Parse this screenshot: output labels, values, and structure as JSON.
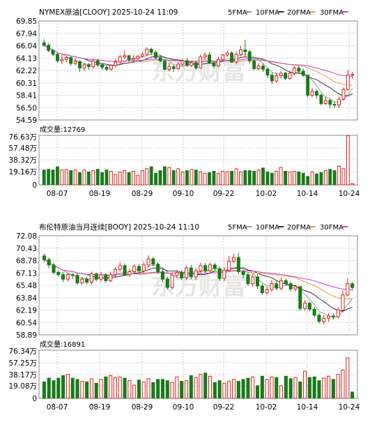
{
  "chart_data": [
    {
      "type": "candlestick",
      "title": "NYMEX原油[CLOOY] 2025-10-24 11:09",
      "legend": [
        {
          "label": "5FMA",
          "color": "#9a9a9a"
        },
        {
          "label": "10FMA",
          "color": "#333333"
        },
        {
          "label": "20FMA",
          "color": "#e0a040"
        },
        {
          "label": "30FMA",
          "color": "#d040d0"
        }
      ],
      "price_ticks": [
        "69.85",
        "67.94",
        "66.04",
        "64.13",
        "62.22",
        "60.31",
        "58.41",
        "56.50",
        "54.59"
      ],
      "price_range": [
        54.59,
        69.85
      ],
      "volume_label": "成交量:12769",
      "volume_ticks": [
        "76.63万",
        "57.48万",
        "38.32万",
        "19.16万",
        "0"
      ],
      "volume_range": [
        0,
        76.63
      ],
      "x_labels": [
        "08-07",
        "08-19",
        "08-29",
        "09-10",
        "09-22",
        "10-02",
        "10-14",
        "10-24"
      ],
      "candles": [
        [
          66.5,
          66.1,
          67.0,
          65.9
        ],
        [
          66.1,
          65.3,
          66.4,
          65.0
        ],
        [
          65.3,
          64.7,
          65.6,
          64.4
        ],
        [
          64.7,
          63.7,
          65.0,
          63.4
        ],
        [
          63.7,
          63.9,
          64.6,
          63.2
        ],
        [
          63.9,
          64.2,
          64.5,
          63.5
        ],
        [
          64.2,
          63.3,
          64.4,
          62.9
        ],
        [
          63.3,
          63.6,
          64.1,
          63.0
        ],
        [
          63.6,
          62.6,
          63.8,
          62.0
        ],
        [
          62.6,
          63.1,
          63.4,
          62.2
        ],
        [
          63.1,
          62.8,
          63.4,
          62.3
        ],
        [
          62.8,
          63.7,
          64.0,
          62.5
        ],
        [
          63.7,
          63.1,
          64.0,
          62.8
        ],
        [
          63.1,
          62.7,
          63.3,
          62.3
        ],
        [
          62.7,
          62.4,
          63.0,
          62.1
        ],
        [
          62.4,
          63.0,
          63.2,
          62.2
        ],
        [
          63.0,
          63.5,
          64.0,
          62.7
        ],
        [
          63.5,
          64.3,
          64.6,
          63.1
        ],
        [
          64.3,
          64.5,
          65.3,
          64.0
        ],
        [
          64.5,
          63.9,
          64.6,
          63.5
        ],
        [
          63.9,
          64.1,
          64.6,
          63.6
        ],
        [
          64.1,
          64.4,
          64.6,
          63.8
        ],
        [
          64.4,
          64.7,
          65.1,
          64.3
        ],
        [
          64.7,
          65.5,
          65.8,
          64.5
        ],
        [
          65.5,
          65.0,
          65.7,
          64.6
        ],
        [
          65.0,
          64.2,
          65.3,
          63.9
        ],
        [
          64.2,
          63.7,
          64.5,
          63.4
        ],
        [
          63.7,
          62.4,
          63.9,
          62.2
        ],
        [
          62.4,
          62.8,
          63.4,
          62.1
        ],
        [
          62.8,
          62.5,
          63.1,
          62.0
        ],
        [
          62.5,
          63.2,
          63.5,
          62.3
        ],
        [
          63.2,
          63.7,
          64.0,
          62.8
        ],
        [
          63.7,
          63.0,
          64.1,
          62.7
        ],
        [
          63.0,
          63.4,
          63.7,
          62.7
        ],
        [
          63.4,
          62.6,
          63.7,
          62.3
        ],
        [
          62.6,
          64.3,
          64.7,
          62.5
        ],
        [
          64.3,
          64.6,
          65.0,
          63.9
        ],
        [
          64.6,
          63.4,
          65.0,
          63.2
        ],
        [
          63.4,
          62.9,
          63.7,
          62.5
        ],
        [
          62.9,
          63.9,
          64.3,
          62.7
        ],
        [
          63.9,
          64.6,
          64.8,
          63.5
        ],
        [
          64.6,
          64.9,
          65.2,
          64.3
        ],
        [
          64.9,
          63.5,
          65.2,
          63.4
        ],
        [
          63.5,
          64.7,
          65.1,
          63.2
        ],
        [
          64.7,
          65.4,
          66.0,
          64.4
        ],
        [
          65.4,
          65.1,
          66.9,
          64.3
        ],
        [
          65.1,
          63.7,
          65.4,
          63.3
        ],
        [
          63.7,
          62.5,
          63.9,
          62.2
        ],
        [
          62.5,
          62.9,
          63.3,
          62.2
        ],
        [
          62.9,
          62.4,
          63.3,
          62.0
        ],
        [
          62.4,
          61.5,
          62.7,
          61.1
        ],
        [
          61.5,
          60.6,
          61.9,
          60.1
        ],
        [
          60.6,
          61.4,
          61.8,
          60.3
        ],
        [
          61.4,
          61.8,
          62.1,
          61.0
        ],
        [
          61.8,
          61.0,
          62.0,
          60.7
        ],
        [
          61.0,
          61.8,
          62.2,
          60.8
        ],
        [
          61.8,
          62.6,
          62.9,
          61.5
        ],
        [
          62.6,
          62.1,
          62.9,
          61.7
        ],
        [
          62.1,
          61.5,
          62.5,
          61.2
        ],
        [
          61.5,
          58.4,
          61.6,
          58.1
        ],
        [
          58.4,
          59.0,
          59.5,
          58.1
        ],
        [
          59.0,
          58.4,
          59.3,
          57.9
        ],
        [
          58.4,
          57.1,
          58.7,
          56.8
        ],
        [
          57.1,
          57.6,
          58.2,
          56.9
        ],
        [
          57.6,
          57.0,
          57.9,
          56.4
        ],
        [
          57.0,
          56.9,
          57.4,
          56.4
        ],
        [
          56.9,
          57.8,
          58.2,
          56.4
        ],
        [
          57.8,
          59.3,
          59.6,
          57.6
        ],
        [
          59.3,
          61.5,
          62.3,
          59.1
        ],
        [
          61.5,
          61.6,
          62.0,
          60.9
        ]
      ],
      "volumes": [
        23,
        24,
        23,
        28,
        23,
        24,
        22,
        23,
        19,
        23,
        20,
        22,
        24,
        19,
        23,
        21,
        16,
        20,
        22,
        19,
        21,
        15,
        22,
        25,
        28,
        18,
        22,
        28,
        27,
        22,
        25,
        20,
        22,
        24,
        23,
        20,
        18,
        19,
        21,
        18,
        21,
        20,
        21,
        25,
        20,
        22,
        22,
        21,
        23,
        26,
        20,
        18,
        21,
        27,
        21,
        20,
        21,
        20,
        18,
        13,
        20,
        17,
        19,
        22,
        24,
        22,
        29,
        25,
        76,
        2
      ]
    },
    {
      "type": "candlestick",
      "title": "布伦特原油当月连续[BOOY] 2025-10-24 11:10",
      "legend": [
        {
          "label": "5FMA",
          "color": "#9a9a9a"
        },
        {
          "label": "10FMA",
          "color": "#333333"
        },
        {
          "label": "20FMA",
          "color": "#e0a040"
        },
        {
          "label": "30FMA",
          "color": "#d040d0"
        }
      ],
      "price_ticks": [
        "72.08",
        "70.43",
        "68.78",
        "67.13",
        "65.48",
        "63.84",
        "62.19",
        "60.54",
        "58.89"
      ],
      "price_range": [
        58.89,
        72.08
      ],
      "volume_label": "成交量:16891",
      "volume_ticks": [
        "76.34万",
        "57.25万",
        "38.17万",
        "19.08万",
        "0"
      ],
      "volume_range": [
        0,
        76.34
      ],
      "x_labels": [
        "08-07",
        "08-19",
        "08-29",
        "09-10",
        "09-22",
        "10-02",
        "10-14",
        "10-24"
      ],
      "candles": [
        [
          69.4,
          68.9,
          69.7,
          68.6
        ],
        [
          68.9,
          68.2,
          69.2,
          67.8
        ],
        [
          68.2,
          67.2,
          68.5,
          66.9
        ],
        [
          67.2,
          66.9,
          67.5,
          66.6
        ],
        [
          66.9,
          66.3,
          67.3,
          65.9
        ],
        [
          66.3,
          66.9,
          67.2,
          66.0
        ],
        [
          66.9,
          66.8,
          67.1,
          66.3
        ],
        [
          66.8,
          65.8,
          67.1,
          65.5
        ],
        [
          65.8,
          66.3,
          66.6,
          65.6
        ],
        [
          66.3,
          65.9,
          66.6,
          65.6
        ],
        [
          65.9,
          67.0,
          67.3,
          65.6
        ],
        [
          67.0,
          66.3,
          67.2,
          66.0
        ],
        [
          66.3,
          66.9,
          67.3,
          65.9
        ],
        [
          66.9,
          66.1,
          67.1,
          65.8
        ],
        [
          66.1,
          66.9,
          67.3,
          65.9
        ],
        [
          66.9,
          67.6,
          67.9,
          66.6
        ],
        [
          67.6,
          68.1,
          68.6,
          67.3
        ],
        [
          68.1,
          66.9,
          68.4,
          66.7
        ],
        [
          66.9,
          67.3,
          67.7,
          66.6
        ],
        [
          67.3,
          68.0,
          68.3,
          67.0
        ],
        [
          68.0,
          67.4,
          68.3,
          67.1
        ],
        [
          67.4,
          68.2,
          68.6,
          67.1
        ],
        [
          68.2,
          69.0,
          69.5,
          67.9
        ],
        [
          69.0,
          68.3,
          69.3,
          68.0
        ],
        [
          68.3,
          67.3,
          68.6,
          67.0
        ],
        [
          67.3,
          66.3,
          67.6,
          65.9
        ],
        [
          66.3,
          65.2,
          66.6,
          64.9
        ],
        [
          65.2,
          66.8,
          67.2,
          64.9
        ],
        [
          66.8,
          67.2,
          67.5,
          66.5
        ],
        [
          67.2,
          66.5,
          67.5,
          66.2
        ],
        [
          66.5,
          67.8,
          68.1,
          66.2
        ],
        [
          67.8,
          66.6,
          68.2,
          66.3
        ],
        [
          66.6,
          67.4,
          67.8,
          66.2
        ],
        [
          67.4,
          68.1,
          68.5,
          67.1
        ],
        [
          68.1,
          67.4,
          68.5,
          67.1
        ],
        [
          67.4,
          68.2,
          68.5,
          67.0
        ],
        [
          68.2,
          67.7,
          68.5,
          67.3
        ],
        [
          67.7,
          66.4,
          68.0,
          66.1
        ],
        [
          66.4,
          67.5,
          67.9,
          66.1
        ],
        [
          67.5,
          68.7,
          69.4,
          67.3
        ],
        [
          68.7,
          69.2,
          69.7,
          68.5
        ],
        [
          69.2,
          67.3,
          69.8,
          66.9
        ],
        [
          67.3,
          66.9,
          67.6,
          66.4
        ],
        [
          66.9,
          65.7,
          67.2,
          65.4
        ],
        [
          65.7,
          66.6,
          67.0,
          65.3
        ],
        [
          66.6,
          65.4,
          67.0,
          65.0
        ],
        [
          65.4,
          64.5,
          65.7,
          64.2
        ],
        [
          64.5,
          64.9,
          65.3,
          64.2
        ],
        [
          64.9,
          65.7,
          66.2,
          64.6
        ],
        [
          65.7,
          65.1,
          66.1,
          64.8
        ],
        [
          65.1,
          66.1,
          66.5,
          64.8
        ],
        [
          66.1,
          65.7,
          66.4,
          65.4
        ],
        [
          65.7,
          65.0,
          66.0,
          64.7
        ],
        [
          65.0,
          65.3,
          65.6,
          64.7
        ],
        [
          65.3,
          62.4,
          65.4,
          62.1
        ],
        [
          62.4,
          63.1,
          63.5,
          62.1
        ],
        [
          63.1,
          62.3,
          63.3,
          62.0
        ],
        [
          62.3,
          61.5,
          62.6,
          61.2
        ],
        [
          61.5,
          60.7,
          61.8,
          60.4
        ],
        [
          60.7,
          61.1,
          61.5,
          60.3
        ],
        [
          61.1,
          61.4,
          61.8,
          60.6
        ],
        [
          61.4,
          61.3,
          61.7,
          60.9
        ],
        [
          61.3,
          62.2,
          62.6,
          61.0
        ],
        [
          62.2,
          64.2,
          64.8,
          61.9
        ],
        [
          64.2,
          65.7,
          66.4,
          64.0
        ],
        [
          65.7,
          65.2,
          65.9,
          64.8
        ]
      ],
      "volumes": [
        26,
        32,
        28,
        32,
        36,
        38,
        32,
        30,
        27,
        26,
        31,
        24,
        30,
        34,
        36,
        33,
        34,
        32,
        28,
        21,
        29,
        26,
        31,
        25,
        30,
        30,
        28,
        25,
        34,
        27,
        28,
        36,
        33,
        38,
        40,
        35,
        25,
        28,
        24,
        27,
        30,
        27,
        30,
        32,
        34,
        20,
        35,
        30,
        34,
        33,
        20,
        35,
        31,
        33,
        26,
        43,
        33,
        34,
        28,
        32,
        35,
        30,
        38,
        45,
        64,
        10
      ]
    }
  ]
}
